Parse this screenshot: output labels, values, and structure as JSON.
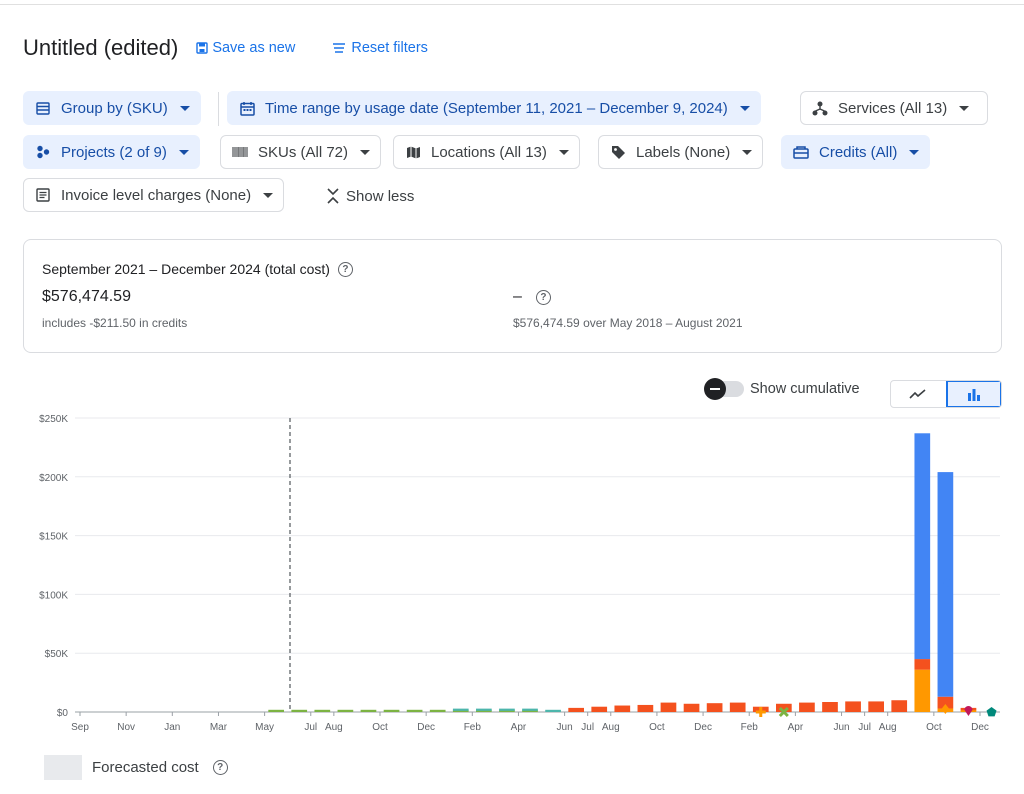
{
  "header": {
    "title": "Untitled (edited)",
    "save_label": "Save as new",
    "reset_label": "Reset filters"
  },
  "filters": {
    "group_by": "Group by (SKU)",
    "time_range": "Time range by usage date (September 11, 2021 – December 9, 2024)",
    "services": "Services (All 13)",
    "projects": "Projects (2 of 9)",
    "skus": "SKUs (All 72)",
    "locations": "Locations (All 13)",
    "labels": "Labels (None)",
    "credits": "Credits (All)",
    "invoice": "Invoice level charges (None)",
    "show_less": "Show less"
  },
  "summary": {
    "period_title": "September 2021 – December 2024 (total cost)",
    "total": "$576,474.59",
    "credits_note": "includes -$211.50 in credits",
    "compare_value": "–",
    "compare_note": "$576,474.59 over May 2018 – August 2021"
  },
  "controls": {
    "cumulative_label": "Show cumulative",
    "view_selected": "bar"
  },
  "icons": {
    "save": "save-icon",
    "reset": "filter-list-icon",
    "group_by": "table-icon",
    "time_range": "calendar-icon",
    "services": "services-icon",
    "projects": "projects-icon",
    "skus": "barcode-icon",
    "locations": "map-icon",
    "labels": "label-icon",
    "credits": "credit-icon",
    "invoice": "invoice-icon",
    "show_less": "collapse-icon",
    "line_view": "line-chart-icon",
    "bar_view": "bar-chart-icon",
    "help": "help-icon"
  },
  "colors": {
    "accent": "#1a73e8",
    "series_blue": "#4285f4",
    "series_orange_red": "#f4511e",
    "series_orange": "#ff9800",
    "series_green": "#7cb342",
    "series_teal": "#4db6ac"
  },
  "chart_data": {
    "type": "bar",
    "stacked": true,
    "yticks": [
      "$0",
      "$50K",
      "$100K",
      "$150K",
      "$200K",
      "$250K"
    ],
    "ylim": [
      0,
      250000
    ],
    "months": [
      "2021-09",
      "2021-10",
      "2021-11",
      "2021-12",
      "2022-01",
      "2022-02",
      "2022-03",
      "2022-04",
      "2022-05",
      "2022-06",
      "2022-07",
      "2022-08",
      "2022-09",
      "2022-10",
      "2022-11",
      "2022-12",
      "2023-01",
      "2023-02",
      "2023-03",
      "2023-04",
      "2023-05",
      "2023-06",
      "2023-07",
      "2023-08",
      "2023-09",
      "2023-10",
      "2023-11",
      "2023-12",
      "2024-01",
      "2024-02",
      "2024-03",
      "2024-04",
      "2024-05",
      "2024-06",
      "2024-07",
      "2024-08",
      "2024-09",
      "2024-10",
      "2024-11",
      "2024-12"
    ],
    "xtick_labels": [
      "Sep",
      "Nov",
      "Jan",
      "Mar",
      "May",
      "Jul",
      "Aug",
      "Oct",
      "Dec",
      "Feb",
      "Apr",
      "Jun",
      "Jul",
      "Aug",
      "Oct",
      "Dec",
      "Feb",
      "Apr",
      "Jun",
      "Jul",
      "Aug",
      "Oct",
      "Dec"
    ],
    "xtick_months": [
      "2021-09",
      "2021-11",
      "2022-01",
      "2022-03",
      "2022-05",
      "2022-07",
      "2022-08",
      "2022-10",
      "2022-12",
      "2023-02",
      "2023-04",
      "2023-06",
      "2023-07",
      "2023-08",
      "2023-10",
      "2023-12",
      "2024-02",
      "2024-04",
      "2024-06",
      "2024-07",
      "2024-08",
      "2024-10",
      "2024-12"
    ],
    "series": [
      {
        "color": "#ff9800",
        "values": [
          0,
          0,
          0,
          0,
          0,
          0,
          0,
          0,
          0,
          0,
          0,
          0,
          0,
          0,
          0,
          0,
          0,
          0,
          0,
          0,
          0,
          0,
          0,
          0,
          0,
          0,
          0,
          0,
          0,
          0,
          0,
          0,
          0,
          0,
          0,
          0,
          36000,
          3000,
          1500,
          0
        ]
      },
      {
        "color": "#f4511e",
        "values": [
          0,
          0,
          0,
          0,
          0,
          0,
          0,
          0,
          0,
          0,
          0,
          0,
          0,
          0,
          0,
          0,
          0,
          0,
          0,
          0,
          0,
          3500,
          4500,
          5500,
          6000,
          8000,
          7000,
          7500,
          8000,
          4500,
          7000,
          8000,
          8500,
          9000,
          9000,
          10000,
          9000,
          10000,
          2000,
          0
        ]
      },
      {
        "color": "#4285f4",
        "values": [
          0,
          0,
          0,
          0,
          0,
          0,
          0,
          0,
          0,
          0,
          0,
          0,
          0,
          0,
          0,
          0,
          0,
          0,
          0,
          0,
          0,
          0,
          0,
          0,
          0,
          0,
          0,
          0,
          0,
          0,
          0,
          0,
          0,
          0,
          0,
          0,
          192000,
          191000,
          0,
          0
        ]
      },
      {
        "color": "#7cb342",
        "values": [
          0,
          0,
          0,
          0,
          0,
          0,
          0,
          0,
          600,
          1200,
          1200,
          1000,
          1000,
          1000,
          1000,
          1000,
          1000,
          1000,
          1000,
          1000,
          0,
          0,
          0,
          0,
          0,
          0,
          0,
          0,
          0,
          0,
          0,
          0,
          0,
          0,
          0,
          0,
          0,
          0,
          0,
          0
        ]
      },
      {
        "color": "#4db6ac",
        "values": [
          0,
          0,
          0,
          0,
          0,
          0,
          0,
          0,
          0,
          0,
          0,
          0,
          0,
          0,
          0,
          0,
          300,
          300,
          300,
          300,
          300,
          0,
          0,
          0,
          0,
          0,
          0,
          0,
          0,
          0,
          0,
          0,
          0,
          0,
          0,
          0,
          0,
          0,
          0,
          0
        ]
      }
    ],
    "markers": [
      {
        "month": "2024-02",
        "value": 0,
        "shape": "plus",
        "color": "#ff9800"
      },
      {
        "month": "2024-03",
        "value": 0,
        "shape": "cross",
        "color": "#7cb342"
      },
      {
        "month": "2024-10",
        "value": 110000,
        "shape": "circle",
        "color": "#4285f4"
      },
      {
        "month": "2024-10",
        "value": 2500,
        "shape": "diamond",
        "color": "#ff9800"
      },
      {
        "month": "2024-11",
        "value": 0,
        "shape": "pin",
        "color": "#c2185b"
      },
      {
        "month": "2024-12",
        "value": 0,
        "shape": "pentagon",
        "color": "#00897b"
      }
    ],
    "divider_month": "2022-06",
    "legend": [
      {
        "label": "Forecasted cost",
        "color": "#e8eaed"
      }
    ],
    "grid": true
  }
}
